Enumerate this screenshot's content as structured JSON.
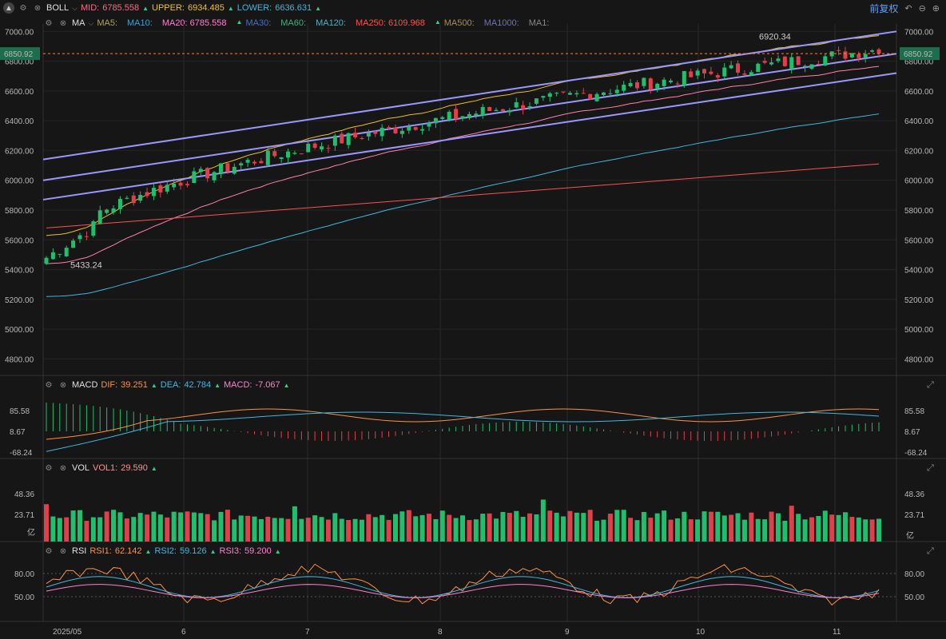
{
  "window": {
    "collapse_icon": "collapse-icon"
  },
  "header": {
    "fuquan_label": "前复权"
  },
  "boll": {
    "label": "BOLL",
    "mid_label": "MID:",
    "mid_value": "6785.558",
    "upper_label": "UPPER:",
    "upper_value": "6934.485",
    "lower_label": "LOWER:",
    "lower_value": "6636.631",
    "colors": {
      "mid": "#ff6688",
      "upper": "#f0c020",
      "lower": "#3fb8e0"
    }
  },
  "ma": {
    "label": "MA",
    "items": [
      {
        "label": "MA5:",
        "value": "",
        "color": "#b0a060"
      },
      {
        "label": "MA10:",
        "value": "",
        "color": "#3fa0d0"
      },
      {
        "label": "MA20:",
        "value": "6785.558",
        "color": "#ff80d0"
      },
      {
        "label": "MA30:",
        "value": "",
        "color": "#3f70d0"
      },
      {
        "label": "MA60:",
        "value": "",
        "color": "#40b080"
      },
      {
        "label": "MA120:",
        "value": "",
        "color": "#50b0c0"
      },
      {
        "label": "MA250:",
        "value": "6109.968",
        "color": "#ff5050"
      },
      {
        "label": "MA500:",
        "value": "",
        "color": "#b09040"
      },
      {
        "label": "MA1000:",
        "value": "",
        "color": "#7070d0"
      },
      {
        "label": "MA1:",
        "value": "",
        "color": "#888888"
      }
    ]
  },
  "macd": {
    "label": "MACD",
    "dif_label": "DIF:",
    "dif_value": "39.251",
    "dea_label": "DEA:",
    "dea_value": "42.784",
    "macd_label": "MACD:",
    "macd_value": "-7.067",
    "ticks": [
      "85.58",
      "8.67",
      "-68.24"
    ]
  },
  "vol": {
    "label": "VOL",
    "vol1_label": "VOL1:",
    "vol1_value": "29.590",
    "ticks": [
      "48.36",
      "23.71",
      "亿"
    ]
  },
  "rsi": {
    "label": "RSI",
    "rsi1_label": "RSI1:",
    "rsi1_value": "62.142",
    "rsi2_label": "RSI2:",
    "rsi2_value": "59.126",
    "rsi3_label": "RSI3:",
    "rsi3_value": "59.200",
    "ticks": [
      "80.00",
      "50.00"
    ]
  },
  "price_axis": {
    "ticks": [
      "7000.00",
      "6800.00",
      "6600.00",
      "6400.00",
      "6200.00",
      "6000.00",
      "5800.00",
      "5600.00",
      "5400.00",
      "5200.00",
      "5000.00",
      "4800.00"
    ],
    "current": "6850.92"
  },
  "date_axis": {
    "labels": [
      "2025/05",
      "6",
      "7",
      "8",
      "9",
      "10",
      "11"
    ]
  },
  "annotations": {
    "high": "6920.34",
    "low": "5433.24"
  },
  "chart_data": {
    "type": "candlestick",
    "ylim": [
      4700,
      7050
    ],
    "current_price": 6850.92,
    "high_annotation": 6920.34,
    "low_annotation": 5433.24,
    "candles_count": 125
  }
}
